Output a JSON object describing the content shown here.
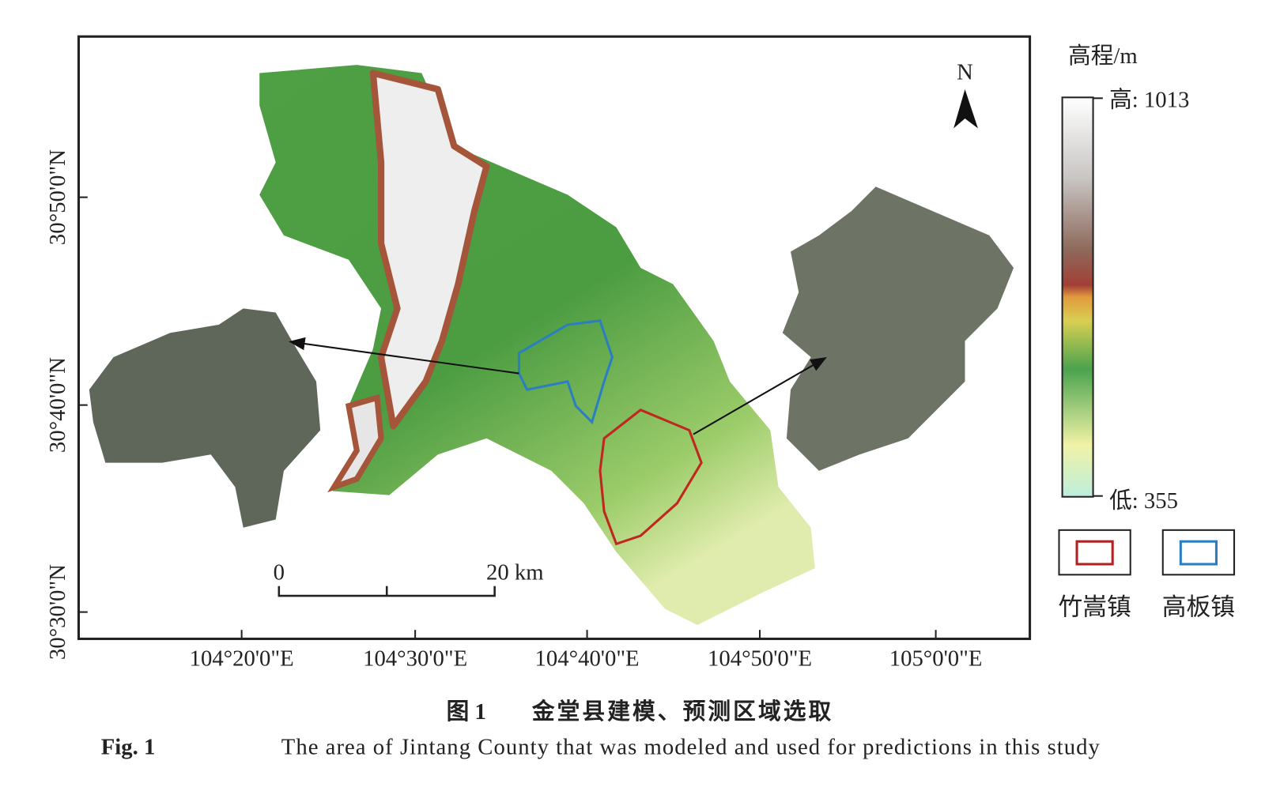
{
  "map": {
    "latitude_labels": [
      "30°50'0\"N",
      "30°40'0\"N",
      "30°30'0\"N"
    ],
    "longitude_labels": [
      "104°20'0\"E",
      "104°30'0\"E",
      "104°40'0\"E",
      "104°50'0\"E",
      "105°0'0\"E"
    ],
    "north": "N",
    "scale_bar": {
      "start": "0",
      "end": "20 km"
    }
  },
  "legend": {
    "title": "高程/m",
    "high": "高: 1013",
    "low": "低: 355",
    "items": [
      "竹嵩镇",
      "高板镇"
    ]
  },
  "caption": {
    "cn_label": "图 1",
    "cn_text": "金堂县建模、预测区域选取",
    "en_label": "Fig. 1",
    "en_text": "The area of Jintang County that was modeled and used for predictions in this study"
  }
}
